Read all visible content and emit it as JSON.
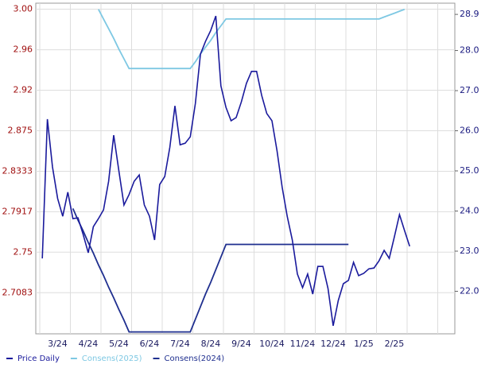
{
  "chart_data": {
    "type": "line",
    "categories": [
      null,
      null,
      null,
      "3/24",
      null,
      null,
      null,
      null,
      null,
      "4/24",
      null,
      null,
      null,
      null,
      null,
      "5/24",
      null,
      null,
      null,
      null,
      null,
      "6/24",
      null,
      null,
      null,
      null,
      null,
      "7/24",
      null,
      null,
      null,
      null,
      null,
      "8/24",
      null,
      null,
      null,
      null,
      null,
      "9/24",
      null,
      null,
      null,
      null,
      null,
      "10/24",
      null,
      null,
      null,
      null,
      null,
      "11/24",
      null,
      null,
      null,
      null,
      null,
      "12/24",
      null,
      null,
      null,
      null,
      null,
      "1/25",
      null,
      null,
      null,
      null,
      null,
      "2/25",
      null,
      null,
      null
    ],
    "series": [
      {
        "name": "Price Daily",
        "color": "#1a1a9c",
        "axis": "y2",
        "values": [
          22.82,
          26.29,
          25.1,
          24.31,
          23.87,
          24.47,
          23.81,
          23.83,
          23.42,
          22.96,
          23.61,
          23.81,
          24.03,
          24.74,
          25.89,
          25.0,
          24.15,
          24.41,
          24.74,
          24.9,
          24.15,
          23.87,
          23.28,
          24.66,
          24.86,
          25.59,
          26.62,
          25.65,
          25.69,
          25.85,
          26.68,
          27.91,
          28.23,
          28.5,
          28.86,
          27.12,
          26.58,
          26.25,
          26.33,
          26.72,
          27.18,
          27.48,
          27.48,
          26.88,
          26.43,
          26.25,
          25.5,
          24.6,
          23.87,
          23.28,
          22.43,
          22.09,
          22.43,
          21.93,
          22.62,
          22.62,
          22.07,
          21.14,
          21.77,
          22.19,
          22.27,
          22.72,
          22.39,
          22.45,
          22.56,
          22.58,
          22.76,
          23.02,
          22.82,
          23.36,
          23.91,
          23.51,
          23.12
        ]
      },
      {
        "name": "Consens(2025)",
        "color": "#7ec8e3",
        "values": [
          null,
          null,
          null,
          null,
          null,
          null,
          null,
          null,
          null,
          null,
          null,
          3.0,
          2.99,
          2.98,
          2.97,
          2.959,
          2.949,
          2.939,
          2.939,
          2.939,
          2.939,
          2.939,
          2.939,
          2.939,
          2.939,
          2.939,
          2.939,
          2.939,
          2.939,
          2.939,
          2.946,
          2.954,
          2.961,
          2.968,
          2.976,
          2.983,
          2.99,
          2.99,
          2.99,
          2.99,
          2.99,
          2.99,
          2.99,
          2.99,
          2.99,
          2.99,
          2.99,
          2.99,
          2.99,
          2.99,
          2.99,
          2.99,
          2.99,
          2.99,
          2.99,
          2.99,
          2.99,
          2.99,
          2.99,
          2.99,
          2.99,
          2.99,
          2.99,
          2.99,
          2.99,
          2.99,
          2.99,
          2.992,
          2.994,
          2.996,
          2.998,
          3.0,
          null
        ]
      },
      {
        "name": "Consens(2024)",
        "color": "#1f2f8f",
        "values": [
          null,
          null,
          null,
          null,
          null,
          null,
          2.795,
          2.783,
          2.772,
          2.76,
          2.749,
          2.737,
          2.726,
          2.714,
          2.703,
          2.691,
          2.68,
          2.668,
          2.668,
          2.668,
          2.668,
          2.668,
          2.668,
          2.668,
          2.668,
          2.668,
          2.668,
          2.668,
          2.668,
          2.668,
          2.681,
          2.694,
          2.707,
          2.719,
          2.732,
          2.745,
          2.758,
          2.758,
          2.758,
          2.758,
          2.758,
          2.758,
          2.758,
          2.758,
          2.758,
          2.758,
          2.758,
          2.758,
          2.758,
          2.758,
          2.758,
          2.758,
          2.758,
          2.758,
          2.758,
          2.758,
          2.758,
          2.758,
          2.758,
          2.758,
          2.758,
          null,
          null,
          null,
          null,
          null,
          null,
          null,
          null,
          null,
          null,
          null,
          null
        ]
      }
    ],
    "ylim": [
      2.666,
      3.003
    ],
    "yticks": [
      {
        "value": 3.0,
        "label": "3.00"
      },
      {
        "value": 2.9583,
        "label": "2.96"
      },
      {
        "value": 2.9167,
        "label": "2.92"
      },
      2.875,
      2.8333,
      2.7917,
      2.75,
      2.7083
    ],
    "y2lim": [
      20.94,
      29.1
    ],
    "y2ticks": [
      28.9,
      {
        "value": 28,
        "label": "28.0"
      },
      {
        "value": 27,
        "label": "27.0"
      },
      {
        "value": 26,
        "label": "26.0"
      },
      {
        "value": 25,
        "label": "25.0"
      },
      {
        "value": 24,
        "label": "24.0"
      },
      {
        "value": 23,
        "label": "23.0"
      },
      {
        "value": 22,
        "label": "22.0"
      }
    ],
    "grid": true
  }
}
